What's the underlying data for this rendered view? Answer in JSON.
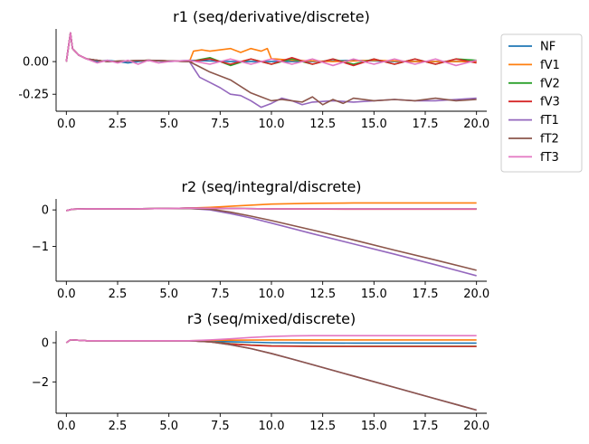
{
  "colors": {
    "NF": "#1f77b4",
    "fV1": "#ff7f0e",
    "fV2": "#2ca02c",
    "fV3": "#d62728",
    "fT1": "#9467bd",
    "fT2": "#8c564b",
    "fT3": "#e377c2"
  },
  "legend": {
    "placement": "outside-upper-right",
    "entries": [
      "NF",
      "fV1",
      "fV2",
      "fV3",
      "fT1",
      "fT2",
      "fT3"
    ]
  },
  "chart_data": [
    {
      "type": "line",
      "title": "r1 (seq/derivative/discrete)",
      "xlabel": "",
      "ylabel": "",
      "xlim": [
        -0.5,
        20.5
      ],
      "ylim": [
        -0.38,
        0.25
      ],
      "xticks": [
        "0.0",
        "2.5",
        "5.0",
        "7.5",
        "10.0",
        "12.5",
        "15.0",
        "17.5",
        "20.0"
      ],
      "yticks": [
        "0.00",
        "-0.25"
      ],
      "series": [
        {
          "name": "NF",
          "x": [
            0,
            0.2,
            0.3,
            0.6,
            1,
            1.5,
            2,
            3,
            4,
            5,
            6,
            8,
            10,
            12,
            14,
            16,
            18,
            20
          ],
          "values": [
            0,
            0.22,
            0.1,
            0.05,
            0.02,
            0.0,
            0.01,
            -0.01,
            0.01,
            0.0,
            0.01,
            0.0,
            0.0,
            0.0,
            0.01,
            0.0,
            0.0,
            0.0
          ]
        },
        {
          "name": "fV1",
          "x": [
            0,
            0.2,
            0.3,
            0.6,
            1,
            2,
            4,
            6,
            6.2,
            6.6,
            7,
            8,
            8.5,
            9,
            9.5,
            9.8,
            10,
            10.2,
            11,
            13,
            15,
            17,
            20
          ],
          "values": [
            0,
            0.22,
            0.1,
            0.05,
            0.02,
            0.0,
            0.01,
            0.0,
            0.08,
            0.09,
            0.08,
            0.1,
            0.07,
            0.1,
            0.08,
            0.1,
            0.02,
            0.02,
            0.01,
            0.0,
            0.01,
            0.0,
            0.0
          ]
        },
        {
          "name": "fV2",
          "x": [
            0,
            0.2,
            0.3,
            0.6,
            1,
            2,
            4,
            6,
            7,
            8,
            9,
            10,
            11,
            12,
            13,
            14,
            15,
            16,
            17,
            18,
            19,
            20
          ],
          "values": [
            0,
            0.22,
            0.1,
            0.05,
            0.02,
            0.0,
            0.01,
            0.0,
            0.03,
            -0.03,
            0.02,
            -0.02,
            0.02,
            -0.02,
            0.02,
            -0.02,
            0.02,
            -0.02,
            0.02,
            -0.02,
            0.02,
            0.01
          ]
        },
        {
          "name": "fV3",
          "x": [
            0,
            0.2,
            0.3,
            0.6,
            1,
            2,
            4,
            6,
            7,
            8,
            9,
            10,
            11,
            12,
            13,
            14,
            15,
            16,
            17,
            18,
            19,
            20
          ],
          "values": [
            0,
            0.22,
            0.1,
            0.05,
            0.02,
            0.0,
            0.01,
            0.0,
            0.02,
            -0.02,
            0.02,
            -0.02,
            0.03,
            -0.02,
            0.02,
            -0.03,
            0.02,
            -0.02,
            0.02,
            -0.02,
            0.02,
            -0.01
          ]
        },
        {
          "name": "fT1",
          "x": [
            0,
            0.2,
            0.3,
            0.6,
            1,
            2,
            4,
            6,
            6.5,
            7,
            7.5,
            8,
            8.5,
            9,
            9.5,
            10,
            10.5,
            11,
            11.5,
            12,
            13,
            14,
            15,
            16,
            17,
            18,
            19,
            20
          ],
          "values": [
            0,
            0.22,
            0.1,
            0.05,
            0.02,
            0.0,
            0.01,
            0.0,
            -0.12,
            -0.16,
            -0.2,
            -0.25,
            -0.26,
            -0.3,
            -0.35,
            -0.32,
            -0.28,
            -0.3,
            -0.33,
            -0.31,
            -0.3,
            -0.31,
            -0.3,
            -0.29,
            -0.3,
            -0.3,
            -0.29,
            -0.28
          ]
        },
        {
          "name": "fT2",
          "x": [
            0,
            0.2,
            0.3,
            0.6,
            1,
            2,
            4,
            6,
            6.5,
            7,
            8,
            8.5,
            9,
            9.5,
            10,
            10.5,
            11,
            11.5,
            12,
            12.5,
            13,
            13.5,
            14,
            15,
            16,
            17,
            18,
            19,
            20
          ],
          "values": [
            0,
            0.22,
            0.1,
            0.05,
            0.02,
            0.0,
            0.01,
            0.0,
            -0.04,
            -0.08,
            -0.14,
            -0.19,
            -0.24,
            -0.27,
            -0.3,
            -0.29,
            -0.3,
            -0.31,
            -0.27,
            -0.33,
            -0.29,
            -0.32,
            -0.28,
            -0.3,
            -0.29,
            -0.3,
            -0.28,
            -0.3,
            -0.29
          ]
        },
        {
          "name": "fT3",
          "x": [
            0,
            0.2,
            0.3,
            0.6,
            1,
            1.5,
            2,
            2.5,
            3,
            3.5,
            4,
            4.5,
            5,
            6,
            7,
            8,
            9,
            10,
            11,
            12,
            13,
            14,
            15,
            16,
            17,
            18,
            19,
            20
          ],
          "values": [
            0,
            0.22,
            0.1,
            0.05,
            0.02,
            -0.01,
            0.01,
            -0.01,
            0.01,
            -0.02,
            0.01,
            -0.01,
            0.0,
            0.01,
            -0.02,
            0.02,
            -0.02,
            0.02,
            -0.02,
            0.02,
            -0.03,
            0.02,
            -0.02,
            0.02,
            -0.02,
            0.02,
            -0.03,
            0.01
          ]
        }
      ]
    },
    {
      "type": "line",
      "title": "r2 (seq/integral/discrete)",
      "xlabel": "",
      "ylabel": "",
      "xlim": [
        -0.5,
        20.5
      ],
      "ylim": [
        -1.95,
        0.3
      ],
      "xticks": [
        "0.0",
        "2.5",
        "5.0",
        "7.5",
        "10.0",
        "12.5",
        "15.0",
        "17.5",
        "20.0"
      ],
      "yticks": [
        "0",
        "−1"
      ],
      "series": [
        {
          "name": "NF",
          "x": [
            0,
            0.3,
            1,
            3,
            5,
            6,
            8,
            10,
            14,
            20
          ],
          "values": [
            -0.02,
            0.02,
            0.03,
            0.03,
            0.04,
            0.05,
            0.04,
            0.03,
            0.03,
            0.03
          ]
        },
        {
          "name": "fV1",
          "x": [
            0,
            0.3,
            1,
            3,
            5,
            6,
            7,
            8,
            10,
            12,
            14,
            20
          ],
          "values": [
            -0.02,
            0.02,
            0.03,
            0.03,
            0.04,
            0.05,
            0.07,
            0.1,
            0.16,
            0.18,
            0.19,
            0.19
          ]
        },
        {
          "name": "fV2",
          "x": [
            0,
            0.3,
            1,
            3,
            5,
            6,
            8,
            10,
            14,
            20
          ],
          "values": [
            -0.02,
            0.02,
            0.03,
            0.03,
            0.04,
            0.05,
            0.04,
            0.03,
            0.03,
            0.03
          ]
        },
        {
          "name": "fV3",
          "x": [
            0,
            0.3,
            1,
            3,
            5,
            6,
            8,
            10,
            14,
            20
          ],
          "values": [
            -0.02,
            0.02,
            0.03,
            0.03,
            0.04,
            0.05,
            0.04,
            0.03,
            0.02,
            0.02
          ]
        },
        {
          "name": "fT1",
          "x": [
            0,
            0.3,
            1,
            3,
            5,
            6,
            7,
            8,
            9,
            10,
            12,
            14,
            16,
            18,
            20
          ],
          "values": [
            -0.02,
            0.02,
            0.03,
            0.03,
            0.04,
            0.04,
            0.0,
            -0.1,
            -0.22,
            -0.36,
            -0.65,
            -0.93,
            -1.21,
            -1.5,
            -1.8
          ]
        },
        {
          "name": "fT2",
          "x": [
            0,
            0.3,
            1,
            3,
            5,
            6,
            7,
            8,
            9,
            10,
            12,
            14,
            16,
            18,
            20
          ],
          "values": [
            -0.02,
            0.02,
            0.03,
            0.03,
            0.04,
            0.04,
            0.02,
            -0.06,
            -0.17,
            -0.29,
            -0.55,
            -0.82,
            -1.1,
            -1.37,
            -1.65
          ]
        },
        {
          "name": "fT3",
          "x": [
            0,
            0.3,
            1,
            3,
            5,
            6,
            8,
            10,
            14,
            20
          ],
          "values": [
            -0.02,
            0.02,
            0.03,
            0.03,
            0.04,
            0.05,
            0.04,
            0.03,
            0.03,
            0.03
          ]
        }
      ]
    },
    {
      "type": "line",
      "title": "r3 (seq/mixed/discrete)",
      "xlabel": "",
      "ylabel": "",
      "xlim": [
        -0.5,
        20.5
      ],
      "ylim": [
        -3.6,
        0.6
      ],
      "xticks": [
        "0.0",
        "2.5",
        "5.0",
        "7.5",
        "10.0",
        "12.5",
        "15.0",
        "17.5",
        "20.0"
      ],
      "yticks": [
        "0",
        "−2"
      ],
      "series": [
        {
          "name": "NF",
          "x": [
            0,
            0.2,
            1,
            3,
            5,
            6,
            8,
            10,
            14,
            20
          ],
          "values": [
            0,
            0.15,
            0.1,
            0.1,
            0.1,
            0.1,
            0.05,
            0.0,
            -0.02,
            -0.02
          ]
        },
        {
          "name": "fV1",
          "x": [
            0,
            0.2,
            1,
            3,
            5,
            6,
            7,
            8,
            10,
            12,
            14,
            20
          ],
          "values": [
            0,
            0.15,
            0.1,
            0.1,
            0.1,
            0.1,
            0.12,
            0.13,
            0.14,
            0.14,
            0.14,
            0.14
          ]
        },
        {
          "name": "fV2",
          "x": [
            0,
            0.2,
            1,
            3,
            5,
            6,
            7,
            8,
            9,
            10,
            12,
            14,
            20
          ],
          "values": [
            0,
            0.15,
            0.1,
            0.1,
            0.1,
            0.1,
            0.05,
            -0.05,
            -0.12,
            -0.16,
            -0.18,
            -0.18,
            -0.18
          ]
        },
        {
          "name": "fV3",
          "x": [
            0,
            0.2,
            1,
            3,
            5,
            6,
            7,
            8,
            9,
            10,
            12,
            14,
            20
          ],
          "values": [
            0,
            0.15,
            0.1,
            0.1,
            0.1,
            0.1,
            0.04,
            -0.06,
            -0.13,
            -0.17,
            -0.19,
            -0.19,
            -0.19
          ]
        },
        {
          "name": "fT1",
          "x": [
            0,
            0.2,
            1,
            3,
            5,
            6,
            7,
            8,
            9,
            10,
            11,
            12,
            14,
            16,
            18,
            20
          ],
          "values": [
            0,
            0.15,
            0.1,
            0.1,
            0.1,
            0.1,
            0.05,
            -0.1,
            -0.3,
            -0.55,
            -0.83,
            -1.12,
            -1.7,
            -2.28,
            -2.86,
            -3.44
          ]
        },
        {
          "name": "fT2",
          "x": [
            0,
            0.2,
            1,
            3,
            5,
            6,
            7,
            8,
            9,
            10,
            11,
            12,
            14,
            16,
            18,
            20
          ],
          "values": [
            0,
            0.15,
            0.1,
            0.1,
            0.1,
            0.1,
            0.05,
            -0.1,
            -0.3,
            -0.55,
            -0.83,
            -1.12,
            -1.7,
            -2.28,
            -2.86,
            -3.44
          ]
        },
        {
          "name": "fT3",
          "x": [
            0,
            0.2,
            1,
            3,
            5,
            6,
            7,
            8,
            9,
            10,
            11,
            12,
            14,
            20
          ],
          "values": [
            0,
            0.15,
            0.1,
            0.1,
            0.1,
            0.1,
            0.14,
            0.2,
            0.27,
            0.32,
            0.35,
            0.36,
            0.36,
            0.36
          ]
        }
      ]
    }
  ]
}
